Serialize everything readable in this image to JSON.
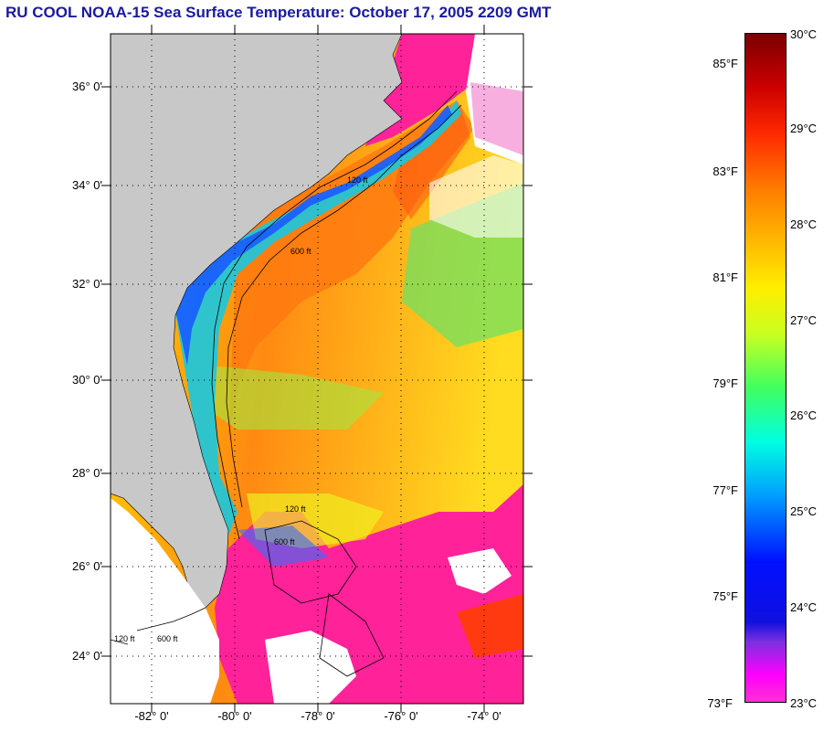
{
  "title": "RU COOL  NOAA-15  Sea Surface Temperature:  October 17, 2005 2209 GMT",
  "map": {
    "lat_labels": [
      "36° 0'",
      "34° 0'",
      "32° 0'",
      "30° 0'",
      "28° 0'",
      "26° 0'",
      "24° 0'"
    ],
    "lon_labels": [
      "-82° 0'",
      "-80° 0'",
      "-78° 0'",
      "-76° 0'",
      "-74° 0'"
    ],
    "contour_labels": [
      "120 ft",
      "600 ft",
      "120 ft",
      "600 ft",
      "120 ft",
      "600 ft"
    ],
    "colors": {
      "land": "#c8c8c8",
      "cloud": "#ff2299",
      "ocean_warm": "#ff7a10",
      "ocean_mid": "#f0f020",
      "coastal_cool": "#1a5cff"
    }
  },
  "colorbar": {
    "fahrenheit": [
      "85°F",
      "83°F",
      "81°F",
      "79°F",
      "77°F",
      "75°F",
      "73°F"
    ],
    "celsius": [
      "30°C",
      "29°C",
      "28°C",
      "27°C",
      "26°C",
      "25°C",
      "24°C",
      "23°C"
    ],
    "range_c": [
      23,
      30
    ],
    "range_f": [
      73,
      86
    ]
  }
}
